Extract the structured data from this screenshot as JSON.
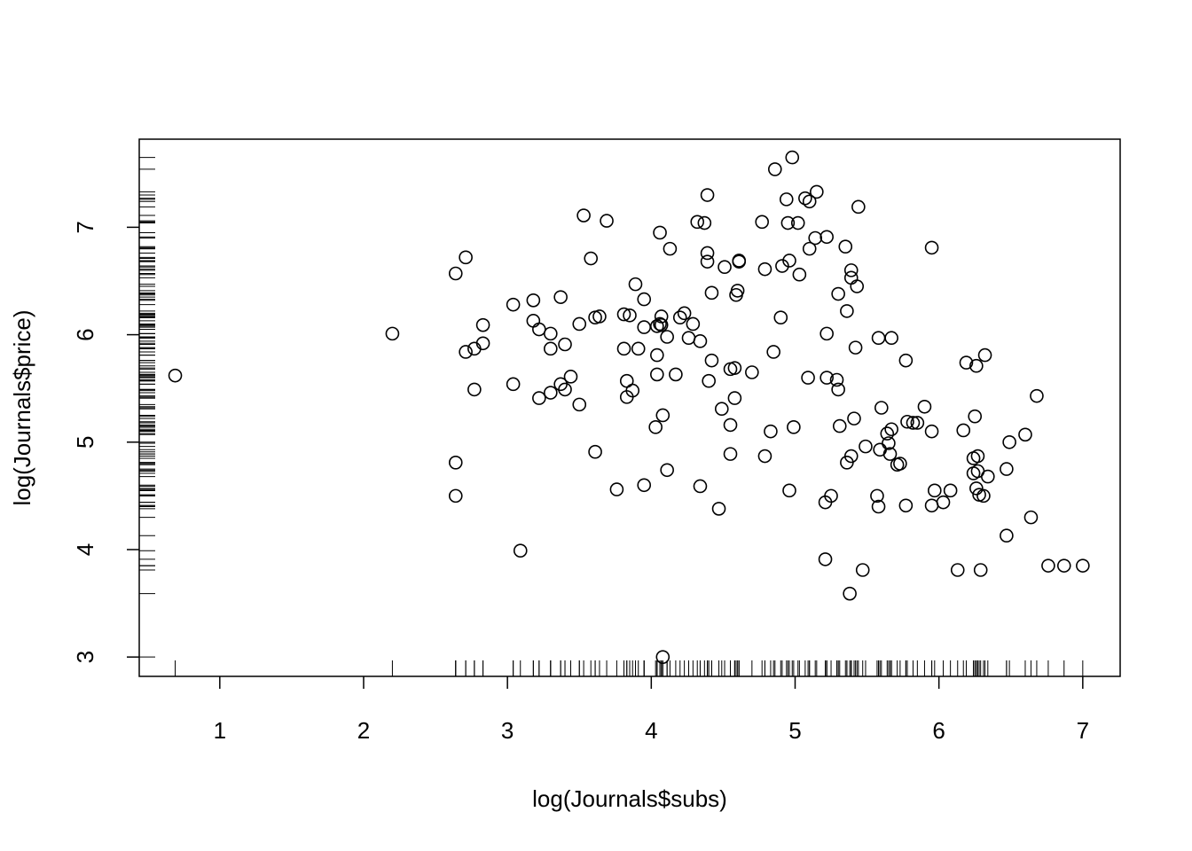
{
  "chart_data": {
    "type": "scatter",
    "title": "",
    "xlabel": "log(Journals$subs)",
    "ylabel": "log(Journals$price)",
    "xlim": [
      0.44,
      7.26
    ],
    "ylim": [
      2.82,
      7.82
    ],
    "xticks": [
      1,
      2,
      3,
      4,
      5,
      6,
      7
    ],
    "yticks": [
      3,
      4,
      5,
      6,
      7
    ],
    "xtick_labels": [
      "1",
      "2",
      "3",
      "4",
      "5",
      "6",
      "7"
    ],
    "ytick_labels": [
      "3",
      "4",
      "5",
      "6",
      "7"
    ],
    "grid": false,
    "legend": "none",
    "marker": "open-circle",
    "rug": true,
    "series": [
      {
        "points": [
          [
            0.69,
            5.62
          ],
          [
            2.2,
            6.01
          ],
          [
            2.64,
            6.57
          ],
          [
            2.64,
            4.81
          ],
          [
            2.64,
            4.5
          ],
          [
            2.71,
            6.72
          ],
          [
            2.71,
            5.84
          ],
          [
            2.77,
            5.87
          ],
          [
            2.77,
            5.49
          ],
          [
            2.83,
            6.09
          ],
          [
            2.83,
            5.92
          ],
          [
            3.04,
            6.28
          ],
          [
            3.04,
            5.54
          ],
          [
            3.09,
            3.99
          ],
          [
            3.18,
            6.32
          ],
          [
            3.18,
            6.13
          ],
          [
            3.22,
            6.05
          ],
          [
            3.22,
            5.41
          ],
          [
            3.3,
            6.01
          ],
          [
            3.3,
            5.87
          ],
          [
            3.3,
            5.46
          ],
          [
            3.37,
            6.35
          ],
          [
            3.37,
            5.54
          ],
          [
            3.4,
            5.91
          ],
          [
            3.4,
            5.49
          ],
          [
            3.44,
            5.61
          ],
          [
            3.5,
            6.1
          ],
          [
            3.5,
            5.35
          ],
          [
            3.53,
            7.11
          ],
          [
            3.58,
            6.71
          ],
          [
            3.61,
            6.16
          ],
          [
            3.61,
            4.91
          ],
          [
            3.64,
            6.17
          ],
          [
            3.69,
            7.06
          ],
          [
            3.76,
            4.56
          ],
          [
            3.81,
            6.19
          ],
          [
            3.81,
            5.87
          ],
          [
            3.83,
            5.57
          ],
          [
            3.83,
            5.42
          ],
          [
            3.85,
            6.18
          ],
          [
            3.87,
            5.48
          ],
          [
            3.89,
            6.47
          ],
          [
            3.91,
            5.87
          ],
          [
            3.95,
            6.33
          ],
          [
            3.95,
            6.07
          ],
          [
            3.95,
            4.6
          ],
          [
            4.03,
            5.14
          ],
          [
            4.04,
            6.08
          ],
          [
            4.04,
            5.81
          ],
          [
            4.04,
            5.63
          ],
          [
            4.06,
            6.95
          ],
          [
            4.06,
            6.1
          ],
          [
            4.07,
            6.17
          ],
          [
            4.07,
            6.09
          ],
          [
            4.08,
            5.25
          ],
          [
            4.08,
            3.0
          ],
          [
            4.11,
            5.98
          ],
          [
            4.11,
            4.74
          ],
          [
            4.13,
            6.8
          ],
          [
            4.17,
            5.63
          ],
          [
            4.2,
            6.16
          ],
          [
            4.23,
            6.2
          ],
          [
            4.26,
            5.97
          ],
          [
            4.29,
            6.1
          ],
          [
            4.32,
            7.05
          ],
          [
            4.34,
            5.94
          ],
          [
            4.34,
            4.59
          ],
          [
            4.37,
            7.04
          ],
          [
            4.39,
            7.3
          ],
          [
            4.39,
            6.76
          ],
          [
            4.39,
            6.68
          ],
          [
            4.4,
            5.57
          ],
          [
            4.42,
            6.39
          ],
          [
            4.42,
            5.76
          ],
          [
            4.47,
            4.38
          ],
          [
            4.49,
            5.31
          ],
          [
            4.51,
            6.63
          ],
          [
            4.55,
            5.68
          ],
          [
            4.55,
            5.16
          ],
          [
            4.55,
            4.89
          ],
          [
            4.58,
            5.69
          ],
          [
            4.58,
            5.41
          ],
          [
            4.59,
            6.37
          ],
          [
            4.6,
            6.41
          ],
          [
            4.61,
            6.69
          ],
          [
            4.61,
            6.68
          ],
          [
            4.7,
            5.65
          ],
          [
            4.77,
            7.05
          ],
          [
            4.79,
            6.61
          ],
          [
            4.79,
            4.87
          ],
          [
            4.83,
            5.1
          ],
          [
            4.85,
            5.84
          ],
          [
            4.86,
            7.54
          ],
          [
            4.9,
            6.16
          ],
          [
            4.91,
            6.64
          ],
          [
            4.94,
            7.26
          ],
          [
            4.95,
            7.04
          ],
          [
            4.96,
            6.69
          ],
          [
            4.96,
            4.55
          ],
          [
            4.98,
            7.65
          ],
          [
            4.99,
            5.14
          ],
          [
            5.02,
            7.04
          ],
          [
            5.03,
            6.56
          ],
          [
            5.07,
            7.27
          ],
          [
            5.09,
            5.6
          ],
          [
            5.1,
            7.24
          ],
          [
            5.1,
            6.8
          ],
          [
            5.14,
            6.9
          ],
          [
            5.15,
            7.33
          ],
          [
            5.21,
            4.44
          ],
          [
            5.21,
            3.91
          ],
          [
            5.22,
            6.91
          ],
          [
            5.22,
            6.01
          ],
          [
            5.22,
            5.6
          ],
          [
            5.25,
            4.5
          ],
          [
            5.29,
            5.58
          ],
          [
            5.3,
            6.38
          ],
          [
            5.3,
            5.49
          ],
          [
            5.31,
            5.15
          ],
          [
            5.35,
            6.82
          ],
          [
            5.36,
            6.22
          ],
          [
            5.36,
            4.81
          ],
          [
            5.38,
            3.59
          ],
          [
            5.39,
            6.6
          ],
          [
            5.39,
            6.53
          ],
          [
            5.39,
            4.87
          ],
          [
            5.41,
            5.22
          ],
          [
            5.42,
            5.88
          ],
          [
            5.43,
            6.45
          ],
          [
            5.44,
            7.19
          ],
          [
            5.47,
            3.81
          ],
          [
            5.49,
            4.96
          ],
          [
            5.57,
            4.5
          ],
          [
            5.58,
            5.97
          ],
          [
            5.58,
            4.4
          ],
          [
            5.59,
            4.93
          ],
          [
            5.6,
            5.32
          ],
          [
            5.64,
            5.08
          ],
          [
            5.65,
            4.99
          ],
          [
            5.66,
            4.89
          ],
          [
            5.67,
            5.97
          ],
          [
            5.67,
            5.12
          ],
          [
            5.71,
            4.79
          ],
          [
            5.73,
            4.8
          ],
          [
            5.77,
            5.76
          ],
          [
            5.77,
            4.41
          ],
          [
            5.78,
            5.19
          ],
          [
            5.82,
            5.18
          ],
          [
            5.85,
            5.18
          ],
          [
            5.9,
            5.33
          ],
          [
            5.95,
            6.81
          ],
          [
            5.95,
            5.1
          ],
          [
            5.95,
            4.41
          ],
          [
            5.97,
            4.55
          ],
          [
            6.03,
            4.44
          ],
          [
            6.08,
            4.55
          ],
          [
            6.13,
            3.81
          ],
          [
            6.17,
            5.11
          ],
          [
            6.19,
            5.74
          ],
          [
            6.24,
            4.85
          ],
          [
            6.24,
            4.71
          ],
          [
            6.25,
            5.24
          ],
          [
            6.26,
            5.71
          ],
          [
            6.26,
            4.57
          ],
          [
            6.27,
            4.87
          ],
          [
            6.27,
            4.73
          ],
          [
            6.28,
            4.51
          ],
          [
            6.29,
            3.81
          ],
          [
            6.31,
            4.5
          ],
          [
            6.32,
            5.81
          ],
          [
            6.34,
            4.68
          ],
          [
            6.47,
            4.75
          ],
          [
            6.47,
            4.13
          ],
          [
            6.49,
            5.0
          ],
          [
            6.6,
            5.07
          ],
          [
            6.64,
            4.3
          ],
          [
            6.68,
            5.43
          ],
          [
            6.76,
            3.85
          ],
          [
            6.87,
            3.85
          ],
          [
            7.0,
            3.85
          ]
        ]
      }
    ]
  },
  "style": {
    "ink": "#000000",
    "background": "#ffffff"
  }
}
